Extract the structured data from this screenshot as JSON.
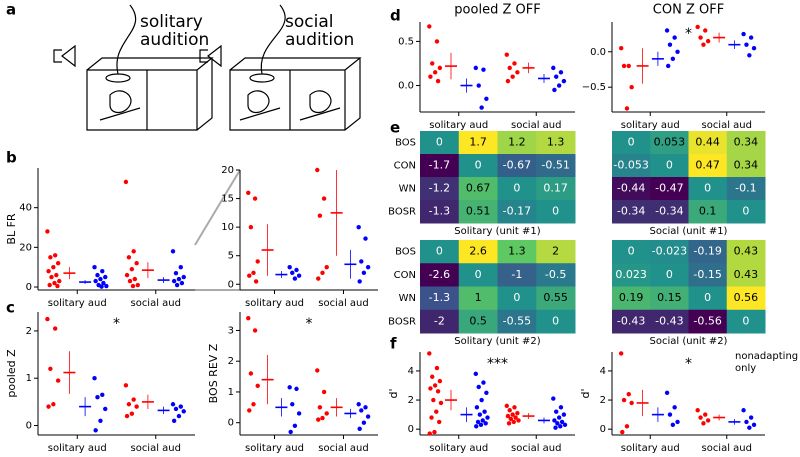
{
  "panels": [
    "a",
    "b",
    "c",
    "d",
    "e",
    "f"
  ],
  "illustration": {
    "left": [
      "solitary",
      "audition"
    ],
    "right": [
      "social",
      "audition"
    ]
  },
  "chart_data": [
    {
      "type": "strip",
      "ylabel": "BL FR",
      "categories": [
        "solitary aud",
        "social aud"
      ],
      "ylim": [
        -1.5,
        60
      ],
      "yticks": [
        0,
        20,
        40
      ],
      "series": [
        {
          "color": "#ff0000",
          "values": [
            [
              28,
              16,
              15,
              12,
              10,
              8,
              6,
              5,
              3,
              2,
              1,
              0.5
            ],
            [
              53,
              18,
              15,
              12,
              9,
              6,
              4,
              3,
              1,
              0.5
            ]
          ],
          "mean": [
            7,
            8.5
          ],
          "error": [
            3,
            4
          ]
        },
        {
          "color": "#0000ff",
          "values": [
            [
              10,
              8,
              6,
              5,
              4,
              3,
              2,
              1,
              0.5,
              0.2
            ],
            [
              18,
              10,
              7,
              5,
              4,
              3,
              2,
              1
            ]
          ],
          "mean": [
            2.5,
            3.5
          ],
          "error": [
            1,
            1.5
          ]
        }
      ]
    },
    {
      "type": "strip",
      "categories": [
        "solitary aud",
        "social aud"
      ],
      "ylim": [
        -1,
        20
      ],
      "yticks": [
        0,
        5,
        10,
        15,
        20
      ],
      "series": [
        {
          "color": "#ff0000",
          "values": [
            [
              16,
              15,
              10,
              4,
              2,
              1.5,
              0.5
            ],
            [
              20,
              15,
              12,
              3,
              2,
              1
            ]
          ],
          "mean": [
            6,
            12.5
          ],
          "error": [
            4.5,
            7.5
          ]
        },
        {
          "color": "#0000ff",
          "values": [
            [
              3,
              2.5,
              2,
              1.5,
              1
            ],
            [
              10,
              8,
              4,
              3,
              2,
              0.5
            ]
          ],
          "mean": [
            1.7,
            3.5
          ],
          "error": [
            0.6,
            2.5
          ]
        }
      ]
    },
    {
      "type": "strip",
      "ylabel": "pooled Z",
      "annotation": "*",
      "categories": [
        "solitary aud",
        "social aud"
      ],
      "ylim": [
        -0.2,
        2.4
      ],
      "yticks": [
        0,
        1,
        2
      ],
      "series": [
        {
          "color": "#ff0000",
          "values": [
            [
              2.25,
              2.05,
              1.2,
              0.95,
              0.45,
              0.4
            ],
            [
              0.85,
              0.55,
              0.45,
              0.4,
              0.25,
              0.2
            ]
          ],
          "mean": [
            1.12,
            0.5
          ],
          "error": [
            0.45,
            0.15
          ]
        },
        {
          "color": "#0000ff",
          "values": [
            [
              1.0,
              0.65,
              0.6,
              0.35,
              0.1,
              -0.1
            ],
            [
              0.45,
              0.4,
              0.35,
              0.3,
              0.2,
              0.1
            ]
          ],
          "mean": [
            0.4,
            0.32
          ],
          "error": [
            0.2,
            0.08
          ]
        }
      ]
    },
    {
      "type": "strip",
      "ylabel": "BOS REV Z",
      "annotation": "*",
      "categories": [
        "solitary aud",
        "social aud"
      ],
      "ylim": [
        -0.4,
        3.6
      ],
      "yticks": [
        0,
        1,
        2,
        3
      ],
      "series": [
        {
          "color": "#ff0000",
          "values": [
            [
              3.4,
              3.0,
              1.6,
              1.2,
              0.6,
              0.4
            ],
            [
              1.7,
              1.0,
              0.5,
              0.3,
              0.15,
              0.1
            ]
          ],
          "mean": [
            1.4,
            0.5
          ],
          "error": [
            0.8,
            0.3
          ]
        },
        {
          "color": "#0000ff",
          "values": [
            [
              1.15,
              1.1,
              0.6,
              0.3,
              -0.1,
              -0.3
            ],
            [
              0.6,
              0.5,
              0.4,
              0.2,
              0.0,
              -0.2
            ]
          ],
          "mean": [
            0.5,
            0.3
          ],
          "error": [
            0.3,
            0.15
          ]
        }
      ]
    },
    {
      "type": "strip",
      "title": "pooled Z OFF",
      "categories": [
        "solitary aud",
        "social aud"
      ],
      "ylim": [
        -0.3,
        0.72
      ],
      "yticks": [
        {
          "value": 0,
          "label": "0.0"
        },
        0.5
      ],
      "series": [
        {
          "color": "#ff0000",
          "values": [
            [
              0.67,
              0.5,
              0.25,
              0.2,
              0.15,
              0.1,
              0.05
            ],
            [
              0.35,
              0.25,
              0.2,
              0.15,
              0.1,
              0.05
            ]
          ],
          "mean": [
            0.22,
            0.2
          ],
          "error": [
            0.15,
            0.06
          ]
        },
        {
          "color": "#0000ff",
          "values": [
            [
              0.2,
              0.18,
              0.0,
              -0.15,
              -0.25
            ],
            [
              0.2,
              0.15,
              0.1,
              0.05,
              0.0,
              -0.05
            ]
          ],
          "mean": [
            0.0,
            0.08
          ],
          "error": [
            0.08,
            0.05
          ]
        }
      ]
    },
    {
      "type": "strip",
      "title": "CON Z OFF",
      "annotation": "*",
      "categories": [
        "solitary aud",
        "social aud"
      ],
      "ylim": [
        -0.85,
        0.42
      ],
      "yticks": [
        {
          "value": -0.5,
          "label": "−0.5"
        },
        {
          "value": 0,
          "label": "0.0"
        }
      ],
      "series": [
        {
          "color": "#ff0000",
          "values": [
            [
              0.05,
              -0.2,
              -0.2,
              -0.5,
              -0.8
            ],
            [
              0.35,
              0.3,
              0.2,
              0.15,
              0.1
            ]
          ],
          "mean": [
            -0.2,
            0.2
          ],
          "error": [
            0.25,
            0.07
          ]
        },
        {
          "color": "#0000ff",
          "values": [
            [
              0.3,
              0.2,
              0.1,
              0.0,
              -0.1,
              -0.2
            ],
            [
              0.25,
              0.2,
              0.1,
              0.05,
              -0.05
            ]
          ],
          "mean": [
            -0.1,
            0.1
          ],
          "error": [
            0.1,
            0.06
          ]
        }
      ]
    },
    {
      "type": "heatmap",
      "title": "Solitary (unit #1)",
      "rows": [
        "BOS",
        "CON",
        "WN",
        "BOSR"
      ],
      "values": [
        [
          0,
          1.7,
          1.2,
          1.3
        ],
        [
          -1.7,
          0,
          -0.67,
          -0.51
        ],
        [
          -1.2,
          0.67,
          0,
          0.17
        ],
        [
          -1.3,
          0.51,
          -0.17,
          0
        ]
      ]
    },
    {
      "type": "heatmap",
      "title": "Social (unit #1)",
      "values": [
        [
          0,
          0.053,
          0.44,
          0.34
        ],
        [
          -0.053,
          0,
          0.47,
          0.34
        ],
        [
          -0.44,
          -0.47,
          0,
          -0.1
        ],
        [
          -0.34,
          -0.34,
          0.1,
          0
        ]
      ]
    },
    {
      "type": "heatmap",
      "title": "Solitary (unit #2)",
      "rows": [
        "BOS",
        "CON",
        "WN",
        "BOSR"
      ],
      "values": [
        [
          0,
          2.6,
          1.3,
          2
        ],
        [
          -2.6,
          0,
          -1,
          -0.5
        ],
        [
          -1.3,
          1,
          0,
          0.55
        ],
        [
          -2,
          0.5,
          -0.55,
          0
        ]
      ]
    },
    {
      "type": "heatmap",
      "title": "Social (unit #2)",
      "values": [
        [
          0,
          -0.023,
          -0.19,
          0.43
        ],
        [
          0.023,
          0,
          -0.15,
          0.43
        ],
        [
          0.19,
          0.15,
          0,
          0.56
        ],
        [
          -0.43,
          -0.43,
          -0.56,
          0
        ]
      ]
    },
    {
      "type": "strip",
      "ylabel": "d'",
      "annotation": "***",
      "categories": [
        "solitary aud",
        "social aud"
      ],
      "ylim": [
        -0.4,
        5.3
      ],
      "yticks": [
        0,
        2,
        4
      ],
      "series": [
        {
          "color": "#ff0000",
          "values": [
            [
              5.2,
              4.2,
              3.6,
              3.3,
              3.0,
              2.8,
              2.6,
              2.0,
              1.8,
              1.2,
              0.8,
              0.5,
              -0.2,
              -0.3
            ],
            [
              1.6,
              1.5,
              1.3,
              1.1,
              1.0,
              0.9,
              0.8,
              0.7,
              0.6,
              0.5,
              0.4
            ]
          ],
          "mean": [
            2.0,
            0.9
          ],
          "error": [
            0.7,
            0.2
          ]
        },
        {
          "color": "#0000ff",
          "values": [
            [
              3.8,
              3.2,
              2.9,
              2.5,
              2.0,
              1.5,
              1.2,
              1.0,
              0.8,
              0.6,
              0.5,
              0.4,
              0.3,
              0.2
            ],
            [
              2.1,
              1.5,
              1.2,
              1.0,
              0.8,
              0.6,
              0.5,
              0.4,
              0.3,
              0.2,
              0.1
            ]
          ],
          "mean": [
            1.0,
            0.6
          ],
          "error": [
            0.5,
            0.2
          ]
        }
      ]
    },
    {
      "type": "strip",
      "ylabel": "d'",
      "annotation": "*",
      "note": [
        "nonadapting",
        "only"
      ],
      "categories": [
        "solitary aud",
        "social aud"
      ],
      "ylim": [
        -0.4,
        5.3
      ],
      "yticks": [
        0,
        2,
        4
      ],
      "series": [
        {
          "color": "#ff0000",
          "values": [
            [
              5.2,
              2.4,
              2.0,
              1.8,
              0.2,
              -0.2
            ],
            [
              1.3,
              1.0,
              0.8,
              0.6,
              0.4
            ]
          ],
          "mean": [
            1.8,
            0.8
          ],
          "error": [
            0.9,
            0.2
          ]
        },
        {
          "color": "#0000ff",
          "values": [
            [
              2.5,
              1.5,
              1.0,
              0.5,
              0.3
            ],
            [
              1.3,
              0.8,
              0.5,
              0.3,
              0.1
            ]
          ],
          "mean": [
            1.0,
            0.5
          ],
          "error": [
            0.5,
            0.2
          ]
        }
      ]
    }
  ]
}
